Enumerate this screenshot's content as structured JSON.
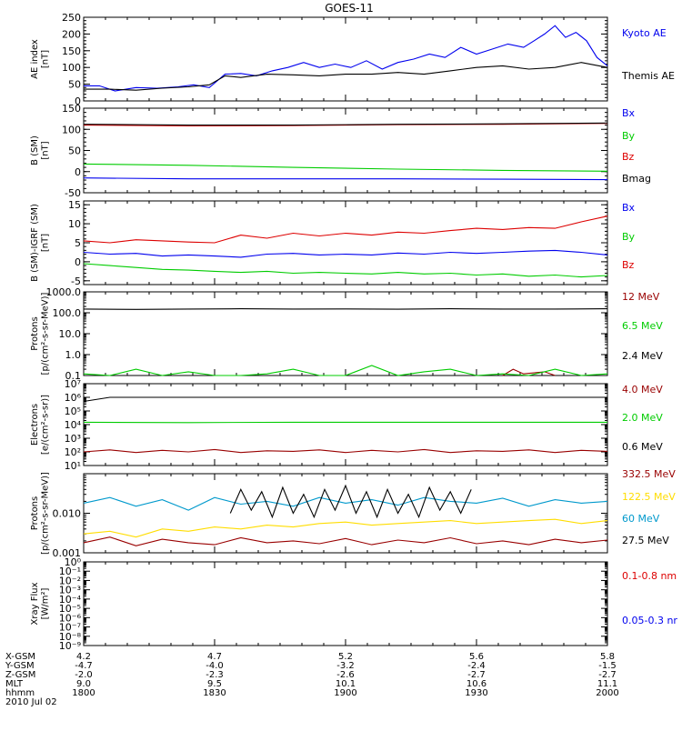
{
  "title": "GOES-11",
  "colors": {
    "black": "#000000",
    "blue": "#0000ee",
    "green": "#00cc00",
    "red": "#dd0000",
    "darkred": "#990000",
    "yellow": "#ffdd00",
    "cyan": "#0099cc"
  },
  "chart_data": [
    {
      "id": "ae",
      "type": "line",
      "ylabel": [
        "AE index",
        "[nT]"
      ],
      "ylim": [
        0,
        250
      ],
      "yscale": "linear",
      "ticks": [
        "0",
        "50",
        "100",
        "150",
        "200",
        "250"
      ],
      "tick_values": [
        0,
        50,
        100,
        150,
        200,
        250
      ],
      "minor_step": 10,
      "series": [
        {
          "name": "Kyoto AE",
          "color": "#0000ee",
          "x": [
            0,
            0.03,
            0.06,
            0.1,
            0.14,
            0.18,
            0.21,
            0.24,
            0.27,
            0.3,
            0.33,
            0.36,
            0.39,
            0.42,
            0.45,
            0.48,
            0.51,
            0.54,
            0.57,
            0.6,
            0.63,
            0.66,
            0.69,
            0.72,
            0.75,
            0.78,
            0.81,
            0.84,
            0.86,
            0.88,
            0.9,
            0.92,
            0.94,
            0.96,
            0.98,
            1.0
          ],
          "values": [
            45,
            45,
            30,
            40,
            38,
            42,
            48,
            40,
            80,
            82,
            75,
            90,
            100,
            115,
            100,
            110,
            100,
            120,
            95,
            115,
            125,
            140,
            130,
            160,
            140,
            155,
            170,
            160,
            180,
            200,
            225,
            190,
            205,
            180,
            130,
            105
          ]
        },
        {
          "name": "Themis AE",
          "color": "#000000",
          "x": [
            0,
            0.05,
            0.1,
            0.15,
            0.2,
            0.24,
            0.27,
            0.3,
            0.35,
            0.4,
            0.45,
            0.5,
            0.55,
            0.6,
            0.65,
            0.7,
            0.75,
            0.8,
            0.85,
            0.9,
            0.95,
            1.0
          ],
          "values": [
            35,
            35,
            32,
            38,
            42,
            48,
            75,
            70,
            80,
            78,
            75,
            80,
            80,
            85,
            80,
            90,
            100,
            105,
            95,
            100,
            115,
            100
          ]
        }
      ]
    },
    {
      "id": "bsm",
      "type": "line",
      "ylabel": [
        "B (SM)",
        "[nT]"
      ],
      "ylim": [
        -50,
        150
      ],
      "yscale": "linear",
      "ticks": [
        "-50",
        "0",
        "50",
        "100",
        "150"
      ],
      "tick_values": [
        -50,
        0,
        50,
        100,
        150
      ],
      "minor_step": 10,
      "series": [
        {
          "name": "Bx",
          "color": "#0000ee",
          "x": [
            0,
            0.2,
            0.4,
            0.6,
            0.8,
            1.0
          ],
          "values": [
            -15,
            -17,
            -17,
            -17,
            -18,
            -19
          ]
        },
        {
          "name": "By",
          "color": "#00cc00",
          "x": [
            0,
            0.2,
            0.4,
            0.6,
            0.8,
            1.0
          ],
          "values": [
            18,
            15,
            10,
            6,
            3,
            1
          ]
        },
        {
          "name": "Bz",
          "color": "#dd0000",
          "x": [
            0,
            0.2,
            0.4,
            0.6,
            0.8,
            1.0
          ],
          "values": [
            110,
            108,
            109,
            111,
            112,
            114
          ]
        },
        {
          "name": "Bmag",
          "color": "#000000",
          "x": [
            0,
            0.2,
            0.4,
            0.6,
            0.8,
            1.0
          ],
          "values": [
            112,
            110,
            110,
            112,
            113,
            115
          ]
        }
      ]
    },
    {
      "id": "igrf",
      "type": "line",
      "ylabel": [
        "B (SM)-IGRF (SM)",
        "[nT]"
      ],
      "ylim": [
        -6,
        16
      ],
      "yscale": "linear",
      "ticks": [
        "-5",
        "0",
        "5",
        "10",
        "15"
      ],
      "tick_values": [
        -5,
        0,
        5,
        10,
        15
      ],
      "minor_step": 1,
      "series": [
        {
          "name": "Bx",
          "color": "#0000ee",
          "x": [
            0,
            0.05,
            0.1,
            0.15,
            0.2,
            0.25,
            0.3,
            0.35,
            0.4,
            0.45,
            0.5,
            0.55,
            0.6,
            0.65,
            0.7,
            0.75,
            0.8,
            0.85,
            0.9,
            0.95,
            1.0
          ],
          "values": [
            2.5,
            2,
            2.2,
            1.5,
            1.8,
            1.5,
            1.2,
            2,
            2.2,
            1.8,
            2,
            1.8,
            2.3,
            2,
            2.5,
            2.2,
            2.5,
            2.8,
            3,
            2.5,
            1.8
          ]
        },
        {
          "name": "By",
          "color": "#00cc00",
          "x": [
            0,
            0.05,
            0.1,
            0.15,
            0.2,
            0.25,
            0.3,
            0.35,
            0.4,
            0.45,
            0.5,
            0.55,
            0.6,
            0.65,
            0.7,
            0.75,
            0.8,
            0.85,
            0.9,
            0.95,
            1.0
          ],
          "values": [
            -0.5,
            -1,
            -1.5,
            -2,
            -2.2,
            -2.5,
            -2.8,
            -2.5,
            -3,
            -2.8,
            -3,
            -3.2,
            -2.8,
            -3.2,
            -3,
            -3.5,
            -3.2,
            -3.8,
            -3.5,
            -4,
            -3.6
          ]
        },
        {
          "name": "Bz",
          "color": "#dd0000",
          "x": [
            0,
            0.05,
            0.1,
            0.15,
            0.2,
            0.25,
            0.3,
            0.35,
            0.4,
            0.45,
            0.5,
            0.55,
            0.6,
            0.65,
            0.7,
            0.75,
            0.8,
            0.85,
            0.9,
            0.95,
            1.0
          ],
          "values": [
            5.5,
            5,
            5.8,
            5.5,
            5.2,
            5,
            7,
            6.2,
            7.5,
            6.8,
            7.5,
            7,
            7.8,
            7.5,
            8.2,
            8.8,
            8.5,
            9,
            8.8,
            10.5,
            12
          ]
        }
      ]
    },
    {
      "id": "protons1",
      "type": "line",
      "ylabel": [
        "Protons",
        "[p/(cm²-s-sr-MeV)]"
      ],
      "ylim": [
        0.1,
        1000
      ],
      "yscale": "log",
      "ticks": [
        "0.1",
        "1.0",
        "10.0",
        "100.0",
        "1000.0"
      ],
      "tick_values": [
        0.1,
        1,
        10,
        100,
        1000
      ],
      "series": [
        {
          "name": "12 MeV",
          "color": "#990000",
          "x": [
            0.8,
            0.82,
            0.84,
            0.88,
            0.9
          ],
          "values": [
            0.1,
            0.2,
            0.12,
            0.15,
            0.1
          ]
        },
        {
          "name": "6.5 MeV",
          "color": "#00cc00",
          "x": [
            0,
            0.05,
            0.1,
            0.15,
            0.2,
            0.25,
            0.3,
            0.35,
            0.4,
            0.45,
            0.5,
            0.55,
            0.6,
            0.65,
            0.7,
            0.75,
            0.8,
            0.85,
            0.9,
            0.95,
            1.0
          ],
          "values": [
            0.12,
            0.1,
            0.2,
            0.1,
            0.15,
            0.1,
            0.1,
            0.12,
            0.2,
            0.1,
            0.1,
            0.3,
            0.1,
            0.15,
            0.2,
            0.1,
            0.12,
            0.1,
            0.2,
            0.1,
            0.12
          ]
        },
        {
          "name": "2.4 MeV",
          "color": "#000000",
          "x": [
            0,
            0.1,
            0.2,
            0.3,
            0.4,
            0.5,
            0.6,
            0.7,
            0.8,
            0.9,
            1.0
          ],
          "values": [
            150,
            145,
            150,
            155,
            150,
            152,
            148,
            155,
            150,
            150,
            155
          ]
        }
      ]
    },
    {
      "id": "electrons",
      "type": "line",
      "ylabel": [
        "Electrons",
        "[e/(cm²-s-sr)]"
      ],
      "ylim": [
        10,
        10000000
      ],
      "yscale": "log",
      "ticks": [
        "10¹",
        "10²",
        "10³",
        "10⁴",
        "10⁵",
        "10⁶",
        "10⁷"
      ],
      "tick_values": [
        10,
        100,
        1000,
        10000,
        100000,
        1000000,
        10000000
      ],
      "series": [
        {
          "name": "4.0 MeV",
          "color": "#990000",
          "x": [
            0,
            0.05,
            0.1,
            0.15,
            0.2,
            0.25,
            0.3,
            0.35,
            0.4,
            0.45,
            0.5,
            0.55,
            0.6,
            0.65,
            0.7,
            0.75,
            0.8,
            0.85,
            0.9,
            0.95,
            1.0
          ],
          "values": [
            100,
            140,
            90,
            130,
            100,
            150,
            90,
            120,
            110,
            140,
            90,
            130,
            100,
            150,
            90,
            120,
            110,
            140,
            90,
            130,
            110
          ]
        },
        {
          "name": "2.0 MeV",
          "color": "#00cc00",
          "x": [
            0,
            0.2,
            0.4,
            0.6,
            0.8,
            1.0
          ],
          "values": [
            15000,
            14000,
            15000,
            15000,
            15000,
            15000
          ]
        },
        {
          "name": "0.6 MeV",
          "color": "#000000",
          "x": [
            0,
            0.05,
            0.2,
            0.4,
            0.6,
            0.8,
            1.0
          ],
          "values": [
            500000,
            1000000,
            1000000,
            1000000,
            1000000,
            1000000,
            1000000
          ]
        }
      ]
    },
    {
      "id": "protons2",
      "type": "line",
      "ylabel": [
        "Protons",
        "[p/(cm²-s-sr-MeV)]"
      ],
      "ylim": [
        0.001,
        0.1
      ],
      "yscale": "log",
      "ticks": [
        "0.001",
        "0.010"
      ],
      "tick_values": [
        0.001,
        0.01
      ],
      "series": [
        {
          "name": "332.5 MeV",
          "color": "#990000",
          "x": [
            0,
            0.05,
            0.1,
            0.15,
            0.2,
            0.25,
            0.3,
            0.35,
            0.4,
            0.45,
            0.5,
            0.55,
            0.6,
            0.65,
            0.7,
            0.75,
            0.8,
            0.85,
            0.9,
            0.95,
            1.0
          ],
          "values": [
            0.0018,
            0.0025,
            0.0015,
            0.0022,
            0.0018,
            0.0016,
            0.0024,
            0.0018,
            0.002,
            0.0017,
            0.0023,
            0.0016,
            0.0021,
            0.0018,
            0.0024,
            0.0017,
            0.002,
            0.0016,
            0.0022,
            0.0018,
            0.0021
          ]
        },
        {
          "name": "122.5 MeV",
          "color": "#ffdd00",
          "x": [
            0,
            0.05,
            0.1,
            0.15,
            0.2,
            0.25,
            0.3,
            0.35,
            0.4,
            0.45,
            0.5,
            0.55,
            0.6,
            0.65,
            0.7,
            0.75,
            0.8,
            0.85,
            0.9,
            0.95,
            1.0
          ],
          "values": [
            0.003,
            0.0035,
            0.0025,
            0.004,
            0.0035,
            0.0045,
            0.004,
            0.005,
            0.0045,
            0.0055,
            0.006,
            0.005,
            0.0055,
            0.006,
            0.0065,
            0.0055,
            0.006,
            0.0065,
            0.007,
            0.0055,
            0.0065
          ]
        },
        {
          "name": "60 MeV",
          "color": "#0099cc",
          "x": [
            0,
            0.05,
            0.1,
            0.15,
            0.2,
            0.25,
            0.3,
            0.35,
            0.4,
            0.45,
            0.5,
            0.55,
            0.6,
            0.65,
            0.7,
            0.75,
            0.8,
            0.85,
            0.9,
            0.95,
            1.0
          ],
          "values": [
            0.018,
            0.025,
            0.015,
            0.022,
            0.012,
            0.025,
            0.017,
            0.02,
            0.015,
            0.025,
            0.018,
            0.022,
            0.016,
            0.025,
            0.02,
            0.018,
            0.024,
            0.015,
            0.022,
            0.018,
            0.02
          ]
        },
        {
          "name": "27.5 MeV",
          "color": "#000000",
          "x": [
            0.28,
            0.3,
            0.32,
            0.34,
            0.36,
            0.38,
            0.4,
            0.42,
            0.44,
            0.46,
            0.48,
            0.5,
            0.52,
            0.54,
            0.56,
            0.58,
            0.6,
            0.62,
            0.64,
            0.66,
            0.68,
            0.7,
            0.72,
            0.74
          ],
          "values": [
            0.01,
            0.04,
            0.012,
            0.035,
            0.008,
            0.045,
            0.01,
            0.03,
            0.008,
            0.04,
            0.012,
            0.05,
            0.01,
            0.035,
            0.008,
            0.04,
            0.01,
            0.03,
            0.008,
            0.045,
            0.012,
            0.035,
            0.01,
            0.04
          ]
        }
      ]
    },
    {
      "id": "xray",
      "type": "line",
      "ylabel": [
        "Xray Flux",
        "[W/m²]"
      ],
      "ylim": [
        1e-09,
        1
      ],
      "yscale": "log",
      "ticks": [
        "10⁻⁹",
        "10⁻⁸",
        "10⁻⁷",
        "10⁻⁶",
        "10⁻⁵",
        "10⁻⁴",
        "10⁻³",
        "10⁻²",
        "10⁻¹",
        "10⁰"
      ],
      "tick_values": [
        1e-09,
        1e-08,
        1e-07,
        1e-06,
        1e-05,
        0.0001,
        0.001,
        0.01,
        0.1,
        1
      ],
      "series": [
        {
          "name": "0.1-0.8 nm",
          "color": "#dd0000",
          "x": [],
          "values": []
        },
        {
          "name": "0.05-0.3 nr",
          "color": "#0000ee",
          "x": [],
          "values": []
        }
      ]
    }
  ],
  "axis_table": {
    "row_labels": [
      "X-GSM",
      "Y-GSM",
      "Z-GSM",
      "MLT",
      "hhmm"
    ],
    "columns": [
      {
        "x": 0,
        "vals": [
          "4.2",
          "-4.7",
          "-2.0",
          "9.0",
          "1800"
        ]
      },
      {
        "x": 0.25,
        "vals": [
          "4.7",
          "-4.0",
          "-2.3",
          "9.5",
          "1830"
        ]
      },
      {
        "x": 0.5,
        "vals": [
          "5.2",
          "-3.2",
          "-2.6",
          "10.1",
          "1900"
        ]
      },
      {
        "x": 0.75,
        "vals": [
          "5.6",
          "-2.4",
          "-2.7",
          "10.6",
          "1930"
        ]
      },
      {
        "x": 1,
        "vals": [
          "5.8",
          "-1.5",
          "-2.7",
          "11.1",
          "2000"
        ]
      }
    ],
    "date": "2010 Jul 02"
  }
}
